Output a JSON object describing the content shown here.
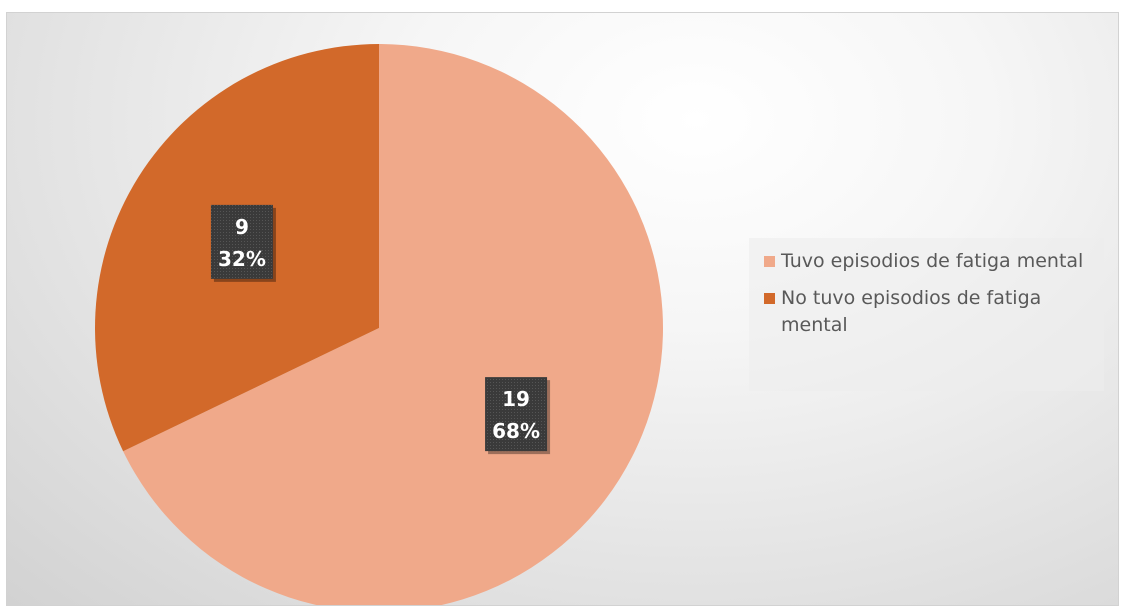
{
  "chart_data": {
    "type": "pie",
    "title": "",
    "slices": [
      {
        "label": "Tuvo episodios de fatiga mental",
        "value": 19,
        "percent": "68%",
        "color": "#f0a98a"
      },
      {
        "label": "No tuvo episodios de fatiga mental",
        "value": 9,
        "percent": "32%",
        "color": "#d2692a"
      }
    ],
    "start_angle_deg": 0,
    "direction": "clockwise",
    "data_labels": "value and percent in dark boxes",
    "legend_position": "right"
  },
  "colors": {
    "label_box": "#3a3a3a",
    "legend_text": "#595959"
  }
}
